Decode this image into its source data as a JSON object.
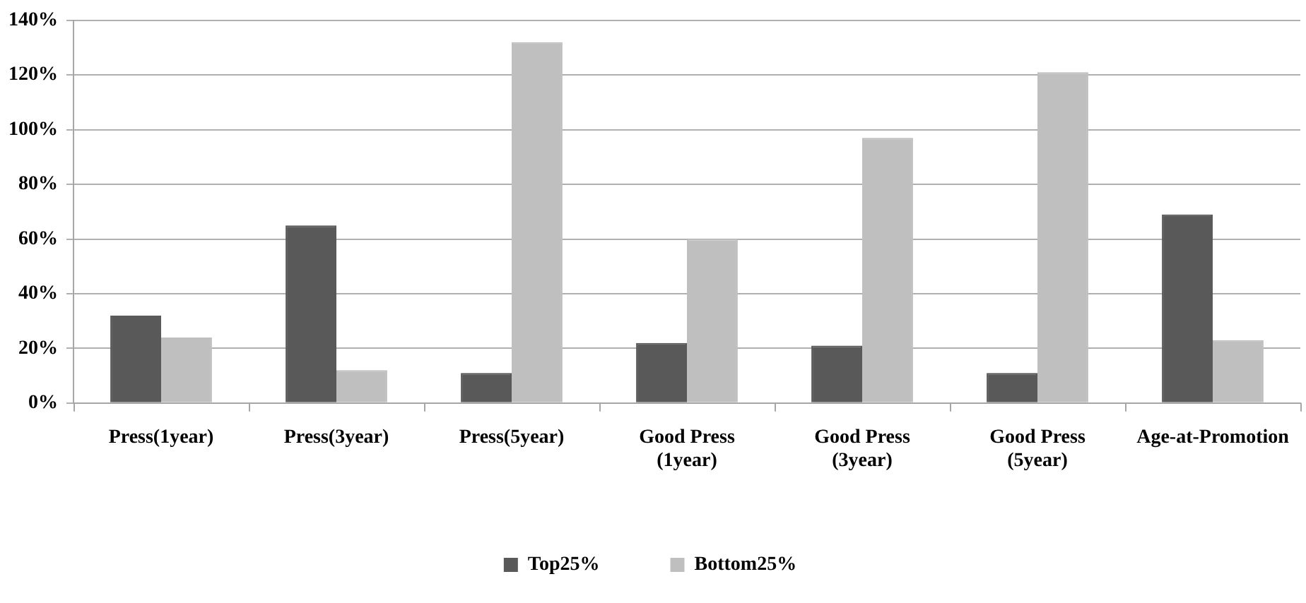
{
  "chart_data": {
    "type": "bar",
    "categories": [
      "Press(1year)",
      "Press(3year)",
      "Press(5year)",
      "Good Press\n(1year)",
      "Good Press\n(3year)",
      "Good Press\n(5year)",
      "Age-at-Promotion"
    ],
    "series": [
      {
        "name": "Top25%",
        "color": "#595959",
        "values": [
          32,
          65,
          11,
          22,
          21,
          11,
          69
        ]
      },
      {
        "name": "Bottom25%",
        "color": "#bfbfbf",
        "values": [
          24,
          12,
          132,
          60,
          97,
          121,
          23
        ]
      }
    ],
    "ylim": [
      0,
      140
    ],
    "yticks": [
      {
        "value": 0,
        "label": "0%"
      },
      {
        "value": 20,
        "label": "20%"
      },
      {
        "value": 40,
        "label": "40%"
      },
      {
        "value": 60,
        "label": "60%"
      },
      {
        "value": 80,
        "label": "80%"
      },
      {
        "value": 100,
        "label": "100%"
      },
      {
        "value": 120,
        "label": "120%"
      },
      {
        "value": 140,
        "label": "140%"
      }
    ],
    "grid": "y",
    "legend": "bottom"
  }
}
